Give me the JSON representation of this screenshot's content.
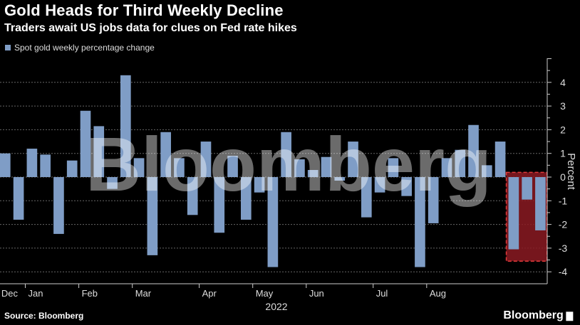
{
  "header": {
    "title": "Gold Heads for Third Weekly Decline",
    "subtitle": "Traders await US jobs data for clues on Fed rate hikes"
  },
  "legend": {
    "label": "Spot gold weekly percentage change"
  },
  "footer": {
    "source": "Source: Bloomberg",
    "brand": "Bloomberg"
  },
  "watermark": "Bloomberg",
  "colors": {
    "bar": "#7f9dc6",
    "highlight": "#8b1a22",
    "background": "#000000"
  },
  "chart_data": {
    "type": "bar",
    "series": [
      {
        "name": "Spot gold weekly percentage change",
        "values": [
          1.0,
          -1.8,
          1.2,
          0.95,
          -2.4,
          0.7,
          2.8,
          2.15,
          -0.5,
          4.3,
          0.8,
          -3.3,
          1.9,
          0.8,
          -1.6,
          1.5,
          -2.35,
          0.9,
          -1.8,
          -0.65,
          -3.8,
          1.9,
          0.75,
          0.3,
          0.85,
          -0.15,
          1.5,
          -1.7,
          -0.65,
          0.8,
          -0.8,
          -3.8,
          -1.95,
          0.8,
          1.15,
          2.2,
          0.5,
          1.5,
          -3.05,
          -0.95,
          -2.25
        ]
      }
    ],
    "ylabel": "Percent",
    "ylim": [
      -4,
      5
    ],
    "yticks": [
      4,
      3,
      2,
      1,
      0,
      -1,
      -2,
      -3,
      -4
    ],
    "month_labels": [
      "Dec",
      "Jan",
      "Feb",
      "Mar",
      "Apr",
      "May",
      "Jun",
      "Jul",
      "Aug"
    ],
    "month_start_index": [
      0,
      2,
      6,
      10,
      15,
      19,
      23,
      28,
      32
    ],
    "year_label": "2022",
    "highlight_range": [
      38,
      40
    ],
    "grid": true
  }
}
